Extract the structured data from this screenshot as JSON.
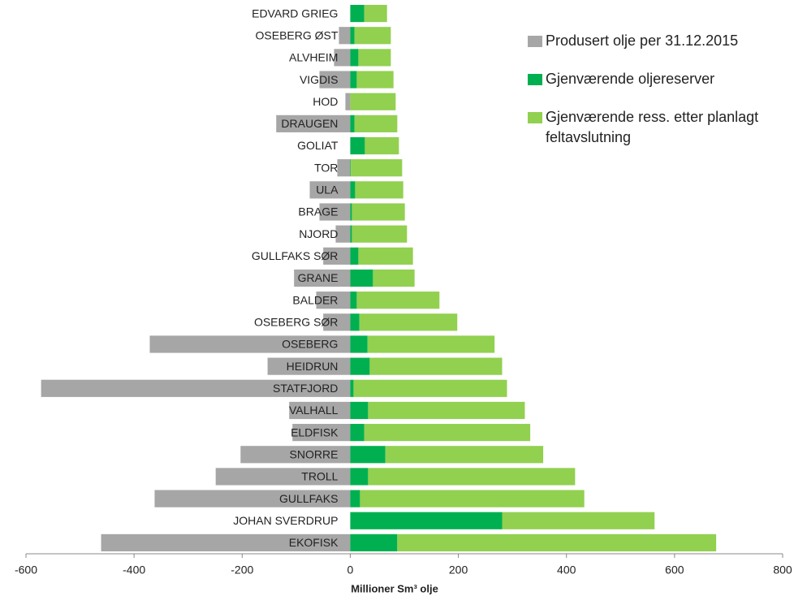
{
  "chart_data": {
    "type": "stacked_bar_horizontal",
    "x_label": "Millioner Sm³ olje",
    "categories": [
      "EDVARD GRIEG",
      "OSEBERG ØST",
      "ALVHEIM",
      "VIGDIS",
      "HOD",
      "DRAUGEN",
      "GOLIAT",
      "TOR",
      "ULA",
      "BRAGE",
      "NJORD",
      "GULLFAKS SØR",
      "GRANE",
      "BALDER",
      "OSEBERG SØR",
      "OSEBERG",
      "HEIDRUN",
      "STATFJORD",
      "VALHALL",
      "ELDFISK",
      "SNORRE",
      "TROLL",
      "GULLFAKS",
      "JOHAN SVERDRUP",
      "EKOFISK"
    ],
    "series": [
      {
        "name": "Produsert olje per 31.12.2015",
        "color": "#a6a6a6",
        "values": [
          0,
          -21,
          -30,
          -57,
          -9,
          -137,
          0,
          -24,
          -75,
          -57,
          -27,
          -50,
          -104,
          -63,
          -50,
          -371,
          -153,
          -572,
          -113,
          -107,
          -203,
          -249,
          -362,
          0,
          -461
        ]
      },
      {
        "name": "Gjenværende oljereserver",
        "color": "#00b050",
        "values": [
          26,
          8,
          15,
          12,
          0,
          8,
          27,
          1,
          9,
          3,
          3,
          15,
          42,
          12,
          17,
          32,
          36,
          6,
          33,
          26,
          65,
          33,
          18,
          281,
          87
        ]
      },
      {
        "name": "Gjenværende ress. etter planlagt feltavslutning",
        "color": "#92d050",
        "values": [
          42,
          67,
          60,
          68,
          84,
          79,
          63,
          95,
          89,
          98,
          102,
          101,
          77,
          153,
          181,
          235,
          245,
          284,
          290,
          307,
          292,
          383,
          415,
          282,
          590
        ]
      }
    ],
    "xlim": [
      -600,
      800
    ],
    "xticks": [
      -600,
      -400,
      -200,
      0,
      200,
      400,
      600,
      800
    ]
  }
}
